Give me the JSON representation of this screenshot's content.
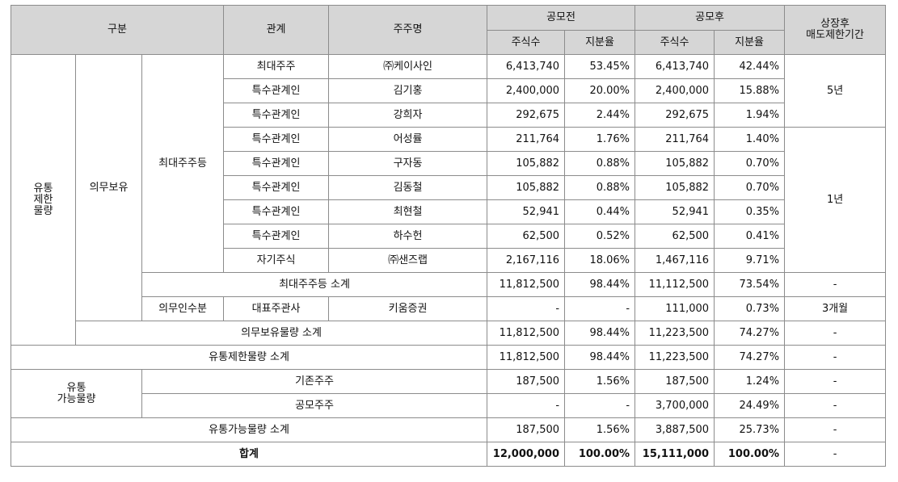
{
  "header": {
    "category": "구분",
    "relation": "관계",
    "holder": "주주명",
    "before_ipo": "공모전",
    "after_ipo": "공모후",
    "shares": "주식수",
    "ratio": "지분율",
    "lockup_line1": "상장후",
    "lockup_line2": "매도제한기간"
  },
  "restricted": {
    "label_l1": "유통",
    "label_l2": "제한",
    "label_l3": "물량",
    "mandatory": "의무보유",
    "largest_group": "최대주주등",
    "rows": [
      {
        "relation": "최대주주",
        "name": "㈜케이사인",
        "pre_shares": "6,413,740",
        "pre_ratio": "53.45%",
        "post_shares": "6,413,740",
        "post_ratio": "42.44%"
      },
      {
        "relation": "특수관계인",
        "name": "김기홍",
        "pre_shares": "2,400,000",
        "pre_ratio": "20.00%",
        "post_shares": "2,400,000",
        "post_ratio": "15.88%"
      },
      {
        "relation": "특수관계인",
        "name": "강희자",
        "pre_shares": "292,675",
        "pre_ratio": "2.44%",
        "post_shares": "292,675",
        "post_ratio": "1.94%"
      },
      {
        "relation": "특수관계인",
        "name": "어성률",
        "pre_shares": "211,764",
        "pre_ratio": "1.76%",
        "post_shares": "211,764",
        "post_ratio": "1.40%"
      },
      {
        "relation": "특수관계인",
        "name": "구자동",
        "pre_shares": "105,882",
        "pre_ratio": "0.88%",
        "post_shares": "105,882",
        "post_ratio": "0.70%"
      },
      {
        "relation": "특수관계인",
        "name": "김동철",
        "pre_shares": "105,882",
        "pre_ratio": "0.88%",
        "post_shares": "105,882",
        "post_ratio": "0.70%"
      },
      {
        "relation": "특수관계인",
        "name": "최현철",
        "pre_shares": "52,941",
        "pre_ratio": "0.44%",
        "post_shares": "52,941",
        "post_ratio": "0.35%"
      },
      {
        "relation": "특수관계인",
        "name": "하수헌",
        "pre_shares": "62,500",
        "pre_ratio": "0.52%",
        "post_shares": "62,500",
        "post_ratio": "0.41%"
      },
      {
        "relation": "자기주식",
        "name": "㈜샌즈랩",
        "pre_shares": "2,167,116",
        "pre_ratio": "18.06%",
        "post_shares": "1,467,116",
        "post_ratio": "9.71%"
      }
    ],
    "lockup_5y": "5년",
    "lockup_1y": "1년",
    "largest_subtotal": {
      "label": "최대주주등 소계",
      "pre_shares": "11,812,500",
      "pre_ratio": "98.44%",
      "post_shares": "11,112,500",
      "post_ratio": "73.54%",
      "lockup": "-"
    },
    "underwriter": {
      "group": "의무인수분",
      "relation": "대표주관사",
      "name": "키움증권",
      "pre_shares": "-",
      "pre_ratio": "-",
      "post_shares": "111,000",
      "post_ratio": "0.73%",
      "lockup": "3개월"
    },
    "mandatory_subtotal": {
      "label": "의무보유물량 소계",
      "pre_shares": "11,812,500",
      "pre_ratio": "98.44%",
      "post_shares": "11,223,500",
      "post_ratio": "74.27%",
      "lockup": "-"
    },
    "subtotal": {
      "label": "유통제한물량 소계",
      "pre_shares": "11,812,500",
      "pre_ratio": "98.44%",
      "post_shares": "11,223,500",
      "post_ratio": "74.27%",
      "lockup": "-"
    }
  },
  "tradable": {
    "label_l1": "유통",
    "label_l2": "가능물량",
    "existing": {
      "label": "기존주주",
      "pre_shares": "187,500",
      "pre_ratio": "1.56%",
      "post_shares": "187,500",
      "post_ratio": "1.24%",
      "lockup": "-"
    },
    "public": {
      "label": "공모주주",
      "pre_shares": "-",
      "pre_ratio": "-",
      "post_shares": "3,700,000",
      "post_ratio": "24.49%",
      "lockup": "-"
    },
    "subtotal": {
      "label": "유통가능물량 소계",
      "pre_shares": "187,500",
      "pre_ratio": "1.56%",
      "post_shares": "3,887,500",
      "post_ratio": "25.73%",
      "lockup": "-"
    }
  },
  "total": {
    "label": "합계",
    "pre_shares": "12,000,000",
    "pre_ratio": "100.00%",
    "post_shares": "15,111,000",
    "post_ratio": "100.00%",
    "lockup": "-"
  }
}
